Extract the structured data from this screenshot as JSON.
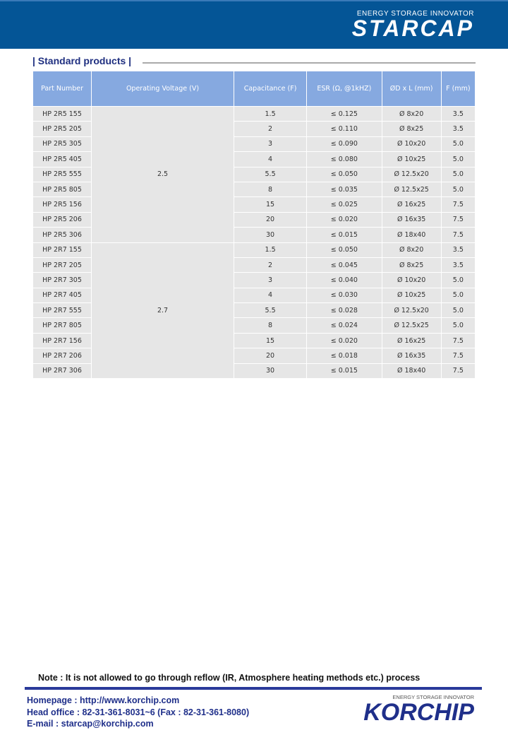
{
  "header": {
    "logo_tagline": "ENERGY STORAGE INNOVATOR",
    "logo_name": "STARCAP"
  },
  "section_title": "| Standard products |",
  "table": {
    "headers": [
      "Part Number",
      "Operating Voltage (V)",
      "Capacitance (F)",
      "ESR (Ω, @1kHZ)",
      "ØD x L (mm)",
      "F (mm)"
    ],
    "groups": [
      {
        "voltage": "2.5",
        "rows": [
          [
            "HP 2R5 155",
            "1.5",
            "≤ 0.125",
            "Ø 8x20",
            "3.5"
          ],
          [
            "HP 2R5 205",
            "2",
            "≤ 0.110",
            "Ø 8x25",
            "3.5"
          ],
          [
            "HP 2R5 305",
            "3",
            "≤ 0.090",
            "Ø 10x20",
            "5.0"
          ],
          [
            "HP 2R5 405",
            "4",
            "≤ 0.080",
            "Ø 10x25",
            "5.0"
          ],
          [
            "HP 2R5 555",
            "5.5",
            "≤ 0.050",
            "Ø 12.5x20",
            "5.0"
          ],
          [
            "HP 2R5 805",
            "8",
            "≤ 0.035",
            "Ø 12.5x25",
            "5.0"
          ],
          [
            "HP 2R5 156",
            "15",
            "≤ 0.025",
            "Ø 16x25",
            "7.5"
          ],
          [
            "HP 2R5 206",
            "20",
            "≤ 0.020",
            "Ø 16x35",
            "7.5"
          ],
          [
            "HP 2R5 306",
            "30",
            "≤ 0.015",
            "Ø 18x40",
            "7.5"
          ]
        ]
      },
      {
        "voltage": "2.7",
        "rows": [
          [
            "HP 2R7 155",
            "1.5",
            "≤ 0.050",
            "Ø 8x20",
            "3.5"
          ],
          [
            "HP 2R7 205",
            "2",
            "≤ 0.045",
            "Ø 8x25",
            "3.5"
          ],
          [
            "HP 2R7 305",
            "3",
            "≤ 0.040",
            "Ø 10x20",
            "5.0"
          ],
          [
            "HP 2R7 405",
            "4",
            "≤ 0.030",
            "Ø 10x25",
            "5.0"
          ],
          [
            "HP 2R7 555",
            "5.5",
            "≤ 0.028",
            "Ø 12.5x20",
            "5.0"
          ],
          [
            "HP 2R7 805",
            "8",
            "≤ 0.024",
            "Ø 12.5x25",
            "5.0"
          ],
          [
            "HP 2R7 156",
            "15",
            "≤ 0.020",
            "Ø 16x25",
            "7.5"
          ],
          [
            "HP 2R7 206",
            "20",
            "≤ 0.018",
            "Ø 16x35",
            "7.5"
          ],
          [
            "HP 2R7 306",
            "30",
            "≤ 0.015",
            "Ø 18x40",
            "7.5"
          ]
        ]
      }
    ]
  },
  "note": "Note : It is not allowed to go through reflow (IR, Atmosphere heating methods etc.) process",
  "footer": {
    "homepage": "Homepage : http://www.korchip.com",
    "office": "Head office : 82-31-361-8031~6 (Fax : 82-31-361-8080)",
    "email": "E-mail : starcap@korchip.com",
    "logo_tagline": "ENERGY STORAGE INNOVATOR",
    "logo_name": "KORCHIP"
  },
  "colors": {
    "header_bg": "#045596",
    "table_header": "#86a9e0",
    "cell_bg": "#e6e6e6",
    "accent": "#1f2f8a"
  }
}
